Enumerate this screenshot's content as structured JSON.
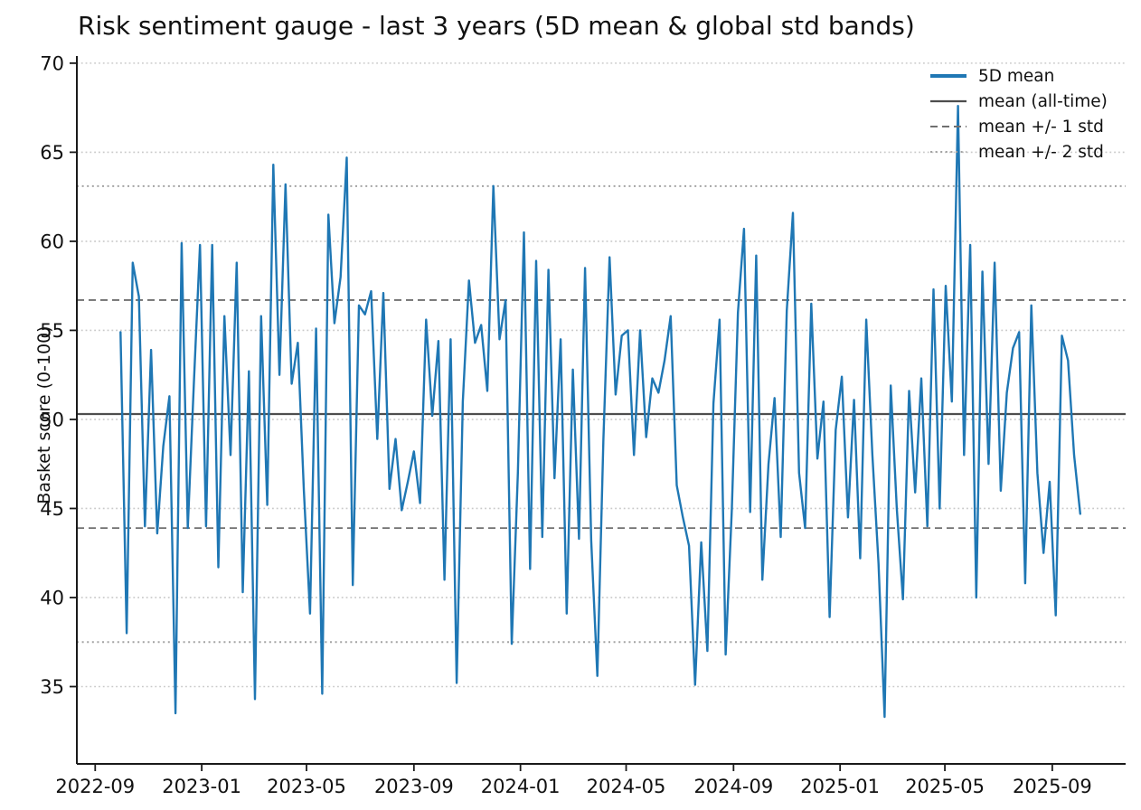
{
  "title": "Risk sentiment gauge - last 3 years (5D mean & global std bands)",
  "legend": {
    "items": [
      {
        "label": "5D mean",
        "style": "solid",
        "color": "#1f77b4",
        "width": 4
      },
      {
        "label": "mean (all-time)",
        "style": "solid",
        "color": "#4d4d4d",
        "width": 2.2
      },
      {
        "label": "mean +/- 1 std",
        "style": "dashed",
        "color": "#707070",
        "width": 2
      },
      {
        "label": "mean +/- 2 std",
        "style": "dotted",
        "color": "#a3a3a3",
        "width": 2
      }
    ]
  },
  "chart_data": {
    "type": "line",
    "title": "Risk sentiment gauge - last 3 years (5D mean & global std bands)",
    "xlabel": "",
    "ylabel": "Basket score (0-100)",
    "ylim": [
      30.66,
      70.4
    ],
    "xlim": [
      "2022-08-11",
      "2025-11-24"
    ],
    "y_ticks": [
      35,
      40,
      45,
      50,
      55,
      60,
      65,
      70
    ],
    "x_ticks": [
      {
        "label": "2022-09",
        "date": "2022-09-01"
      },
      {
        "label": "2023-01",
        "date": "2023-01-01"
      },
      {
        "label": "2023-05",
        "date": "2023-05-01"
      },
      {
        "label": "2023-09",
        "date": "2023-09-01"
      },
      {
        "label": "2024-01",
        "date": "2024-01-01"
      },
      {
        "label": "2024-05",
        "date": "2024-05-01"
      },
      {
        "label": "2024-09",
        "date": "2024-09-01"
      },
      {
        "label": "2025-01",
        "date": "2025-01-01"
      },
      {
        "label": "2025-05",
        "date": "2025-05-01"
      },
      {
        "label": "2025-09",
        "date": "2025-09-01"
      }
    ],
    "grid": {
      "axis": "y",
      "style": "dotted",
      "color": "#c9c9c9"
    },
    "legend_position": "upper right",
    "stats": {
      "mean_all_time": 50.3,
      "std_all_time": 6.4
    },
    "reference_lines": [
      {
        "name": "mean (all-time)",
        "value": 50.3,
        "style": "solid",
        "color": "#4d4d4d",
        "width": 2.2
      },
      {
        "name": "mean + 1 std",
        "value": 56.7,
        "style": "dashed",
        "color": "#707070",
        "width": 1.8
      },
      {
        "name": "mean - 1 std",
        "value": 43.9,
        "style": "dashed",
        "color": "#707070",
        "width": 1.8
      },
      {
        "name": "mean + 2 std",
        "value": 63.1,
        "style": "dotted",
        "color": "#a3a3a3",
        "width": 2
      },
      {
        "name": "mean - 2 std",
        "value": 37.5,
        "style": "dotted",
        "color": "#a3a3a3",
        "width": 2
      }
    ],
    "series": [
      {
        "name": "5D mean",
        "color": "#1f77b4",
        "line_width": 2.4,
        "sampling": "weekly (approximated from plot)",
        "start_date": "2022-09-30",
        "step_days": 7,
        "values": [
          54.9,
          38.0,
          58.8,
          56.9,
          44.0,
          53.9,
          43.6,
          48.5,
          51.3,
          33.5,
          59.9,
          43.9,
          52.0,
          59.8,
          44.0,
          59.8,
          41.7,
          55.8,
          48.0,
          58.8,
          40.3,
          52.7,
          34.3,
          55.8,
          45.2,
          64.3,
          52.5,
          63.2,
          52.0,
          54.3,
          46.0,
          39.1,
          55.1,
          34.6,
          61.5,
          55.4,
          58.0,
          64.7,
          40.7,
          56.4,
          55.9,
          57.2,
          48.9,
          57.1,
          46.1,
          48.9,
          44.9,
          46.5,
          48.2,
          45.3,
          55.6,
          50.2,
          54.4,
          41.0,
          54.5,
          35.2,
          51.0,
          57.8,
          54.3,
          55.3,
          51.6,
          63.1,
          54.5,
          56.7,
          37.4,
          47.0,
          60.5,
          41.6,
          58.9,
          43.4,
          58.4,
          46.7,
          54.5,
          39.1,
          52.8,
          43.3,
          58.5,
          43.2,
          35.6,
          48.9,
          59.1,
          51.4,
          54.7,
          55.0,
          48.0,
          55.0,
          49.0,
          52.3,
          51.5,
          53.3,
          55.8,
          46.3,
          44.5,
          42.9,
          35.1,
          43.1,
          37.0,
          50.9,
          55.6,
          36.8,
          44.9,
          56.0,
          60.7,
          44.8,
          59.2,
          41.0,
          47.5,
          51.2,
          43.4,
          56.1,
          61.6,
          47.0,
          43.9,
          56.5,
          47.8,
          51.0,
          38.9,
          49.4,
          52.4,
          44.5,
          51.1,
          42.2,
          55.6,
          48.0,
          41.9,
          33.3,
          51.9,
          45.0,
          39.9,
          51.6,
          45.9,
          52.3,
          44.0,
          57.3,
          45.0,
          57.5,
          51.0,
          67.6,
          48.0,
          59.8,
          40.0,
          58.3,
          47.5,
          58.8,
          46.0,
          51.5,
          54.0,
          54.9,
          40.8,
          56.4,
          47.0,
          42.5,
          46.5,
          39.0,
          54.7,
          53.3,
          48.0,
          44.7
        ]
      }
    ]
  }
}
